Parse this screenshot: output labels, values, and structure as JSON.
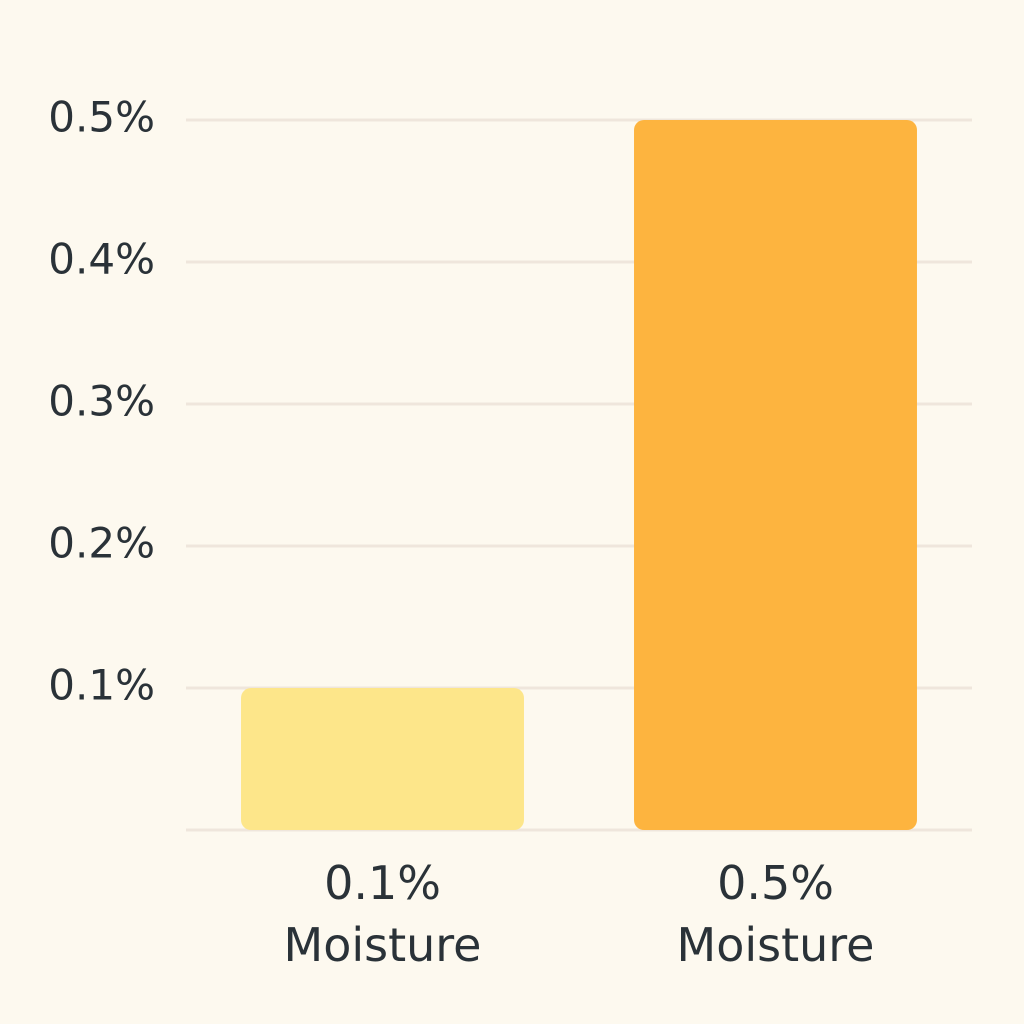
{
  "chart_data": {
    "type": "bar",
    "categories": [
      "0.1% Moisture",
      "0.5% Moisture"
    ],
    "values": [
      0.1,
      0.5
    ],
    "colors": [
      "#fde68a",
      "#fdb43f"
    ],
    "ylim": [
      0,
      0.5
    ],
    "yticks": [
      {
        "value": 0.1,
        "label": "0.1%"
      },
      {
        "value": 0.2,
        "label": "0.2%"
      },
      {
        "value": 0.3,
        "label": "0.3%"
      },
      {
        "value": 0.4,
        "label": "0.4%"
      },
      {
        "value": 0.5,
        "label": "0.5%"
      }
    ],
    "grid": true
  }
}
